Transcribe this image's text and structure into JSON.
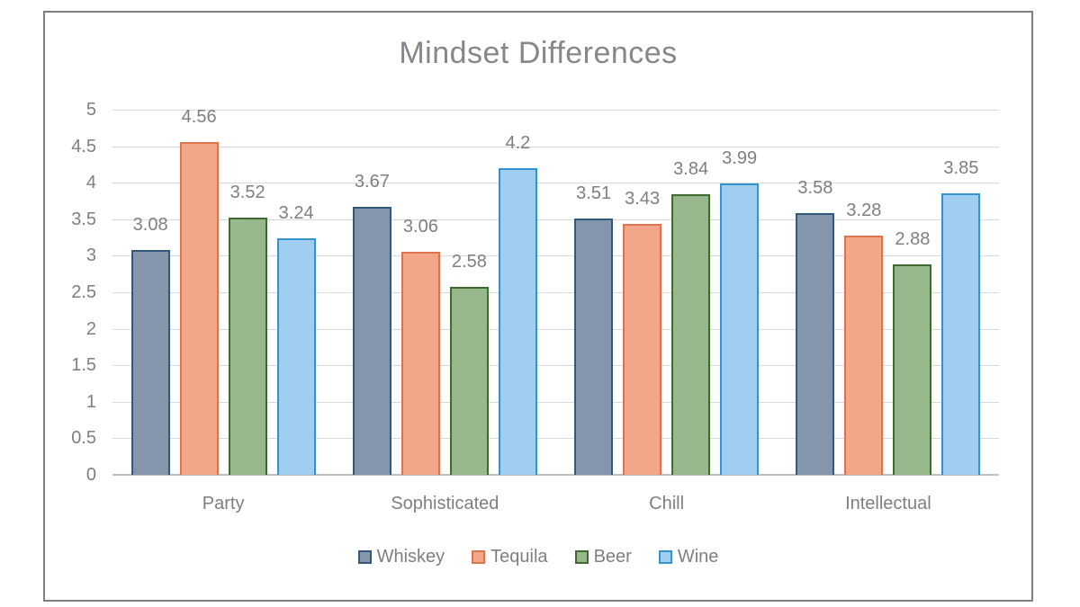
{
  "chart_data": {
    "type": "bar",
    "title": "Mindset Differences",
    "categories": [
      "Party",
      "Sophisticated",
      "Chill",
      "Intellectual"
    ],
    "series": [
      {
        "name": "Whiskey",
        "values": [
          3.08,
          3.67,
          3.51,
          3.58
        ],
        "fill": "#8496AC",
        "border": "#33587A"
      },
      {
        "name": "Tequila",
        "values": [
          4.56,
          3.06,
          3.43,
          3.28
        ],
        "fill": "#F4A688",
        "border": "#DC7450"
      },
      {
        "name": "Beer",
        "values": [
          3.52,
          2.58,
          3.84,
          2.88
        ],
        "fill": "#97B78C",
        "border": "#406B30"
      },
      {
        "name": "Wine",
        "values": [
          3.24,
          4.2,
          3.99,
          3.85
        ],
        "fill": "#9FCEF0",
        "border": "#3493CF"
      }
    ],
    "xlabel": "",
    "ylabel": "",
    "ylim": [
      0,
      5
    ],
    "ytick_step": 0.5,
    "yticks": [
      "0",
      "0.5",
      "1",
      "1.5",
      "2",
      "2.5",
      "3",
      "3.5",
      "4",
      "4.5",
      "5"
    ],
    "grid": true,
    "data_labels": true,
    "legend_position": "bottom"
  },
  "colors": {
    "title_text": "#85888B",
    "axis_text": "#7F7F7F",
    "data_label_text": "#7F7F7F",
    "gridline": "#D9D9D9",
    "axis_line": "#BFBFBF",
    "frame_border": "#7F7F7F",
    "background": "#FFFFFF"
  }
}
